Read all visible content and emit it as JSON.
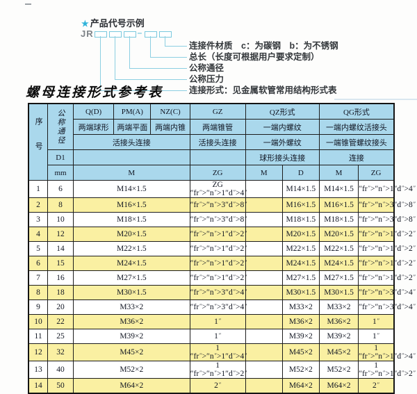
{
  "diagram": {
    "star": "★",
    "title": "产品代号示例",
    "code_prefix": "JR",
    "dash": "–",
    "labels": [
      "连接件材质　c：为碳钢　b：为不锈钢",
      "总长（长度可根据用户要求定制）",
      "公称通径",
      "公称压力",
      "连接形式：见金属软管常用结构形式表"
    ]
  },
  "page_title": "螺母连接形式参考表",
  "table": {
    "header": {
      "seq": "序号",
      "dn": "公称通径",
      "qd": "Q(D)",
      "pma": "PM(A)",
      "nzc": "NZ(C)",
      "gz": "GZ",
      "qz_form": "QZ形式",
      "qg_form": "QG形式",
      "qd_desc": "两端球形",
      "pma_desc": "两端平面",
      "nzc_desc": "两端内锥",
      "gz_desc": "两端锥管",
      "qz_desc": "一端内螺纹",
      "qg_desc": "一端内螺纹活接头",
      "union_conn": "活接头连接",
      "gz_conn": "活接头连接",
      "qz_desc2": "一端外螺纹",
      "qg_desc2": "一端锥管螺纹接头",
      "d1": "D1",
      "qz_conn": "球形接头连接",
      "qg_conn": "连接",
      "mm": "mm",
      "m": "M",
      "zg": "ZG",
      "qz_m": "M",
      "qz_d": "D",
      "qg_m": "M",
      "qg_zg": "ZG"
    },
    "rows": [
      {
        "seq": "1",
        "dn": "6",
        "m": "M14×1.5",
        "gz": "ZG 1/4\"",
        "qz_m": "",
        "qz_d": "M14×1.5",
        "qg_m": "M14×1.5",
        "qg_zg": "1/4\""
      },
      {
        "seq": "2",
        "dn": "8",
        "m": "M16×1.5",
        "gz": "3/8\"",
        "qz_m": "",
        "qz_d": "M16×1.5",
        "qg_m": "M16×1.5",
        "qg_zg": "3/8\""
      },
      {
        "seq": "3",
        "dn": "10",
        "m": "M18×1.5",
        "gz": "3/8\"",
        "qz_m": "",
        "qz_d": "M18×1.5",
        "qg_m": "M18×1.5",
        "qg_zg": "3/8\""
      },
      {
        "seq": "4",
        "dn": "12",
        "m": "M20×1.5",
        "gz": "1/2\"",
        "qz_m": "",
        "qz_d": "M20×1.5",
        "qg_m": "M20×1.5",
        "qg_zg": "1/2\""
      },
      {
        "seq": "5",
        "dn": "14",
        "m": "M22×1.5",
        "gz": "1/2\"",
        "qz_m": "",
        "qz_d": "M22×1.5",
        "qg_m": "M22×1.5",
        "qg_zg": "1/2\""
      },
      {
        "seq": "6",
        "dn": "15",
        "m": "M24×1.5",
        "gz": "1/2\"",
        "qz_m": "",
        "qz_d": "M24×1.5",
        "qg_m": "M24×1.5",
        "qg_zg": "1/2\""
      },
      {
        "seq": "7",
        "dn": "16",
        "m": "M27×1.5",
        "gz": "1/2\"",
        "qz_m": "",
        "qz_d": "M27×1.5",
        "qg_m": "M27×1.5",
        "qg_zg": "1/2\""
      },
      {
        "seq": "8",
        "dn": "18",
        "m": "M30×1.5",
        "gz": "3/4\"",
        "qz_m": "",
        "qz_d": "M30×1.5",
        "qg_m": "M30×1.5",
        "qg_zg": "3/4\""
      },
      {
        "seq": "9",
        "dn": "20",
        "m": "M33×2",
        "gz": "3/4\"",
        "qz_m": "",
        "qz_d": "M33×2",
        "qg_m": "M33×2",
        "qg_zg": "3/4\""
      },
      {
        "seq": "10",
        "dn": "22",
        "m": "M36×2",
        "gz": "1\"",
        "qz_m": "",
        "qz_d": "M36×2",
        "qg_m": "M36×2",
        "qg_zg": "1\""
      },
      {
        "seq": "11",
        "dn": "25",
        "m": "M39×2",
        "gz": "1\"",
        "qz_m": "",
        "qz_d": "M39×2",
        "qg_m": "M39×2",
        "qg_zg": "1\""
      },
      {
        "seq": "12",
        "dn": "32",
        "m": "M45×2",
        "gz": "1 1/4\"",
        "qz_m": "",
        "qz_d": "M45×2",
        "qg_m": "M45×2",
        "qg_zg": "1 1/4\""
      },
      {
        "seq": "13",
        "dn": "40",
        "m": "M52×2",
        "gz": "1 1/2\"",
        "qz_m": "",
        "qz_d": "M52×2",
        "qg_m": "M52×2",
        "qg_zg": "1 1/2\""
      },
      {
        "seq": "14",
        "dn": "50",
        "m": "M64×2",
        "gz": "2\"",
        "qz_m": "",
        "qz_d": "M64×2",
        "qg_m": "M64×2",
        "qg_zg": "2\""
      }
    ]
  },
  "colors": {
    "header_bg": "#aad8ec",
    "alt_row_bg": "#faf0a2",
    "accent_cyan": "#2fb3da",
    "leader_line": "#8ccfe2",
    "border": "#1c1c1c"
  }
}
